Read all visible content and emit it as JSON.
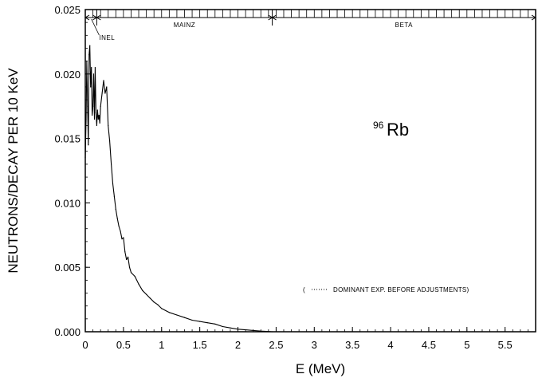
{
  "chart_data": {
    "type": "line",
    "xlabel": "E  (MeV)",
    "ylabel": "NEUTRONS/DECAY PER 10 KeV",
    "xlim": [
      0,
      5.9
    ],
    "ylim": [
      0,
      0.025
    ],
    "x_ticks": [
      "0",
      "0.5",
      "1",
      "1.5",
      "2",
      "2.5",
      "3",
      "3.5",
      "4",
      "4.5",
      "5",
      "5.5"
    ],
    "x_tick_values": [
      0,
      0.5,
      1,
      1.5,
      2,
      2.5,
      3,
      3.5,
      4,
      4.5,
      5,
      5.5
    ],
    "y_ticks": [
      "0.000",
      "0.005",
      "0.010",
      "0.015",
      "0.020",
      "0.025"
    ],
    "y_tick_values": [
      0,
      0.005,
      0.01,
      0.015,
      0.02,
      0.025
    ],
    "annotation": {
      "mass_number": "96",
      "element": "Rb"
    },
    "legend": {
      "prefix": "(",
      "text": "DOMINANT EXP. BEFORE ADJUSTMENTS)"
    },
    "regions": [
      {
        "label": "INEL",
        "x_start": 0,
        "x_end": 0.15
      },
      {
        "label": "MAINZ",
        "x_start": 0.15,
        "x_end": 2.45
      },
      {
        "label": "BETA",
        "x_start": 2.45,
        "x_end": 5.9
      }
    ],
    "series": [
      {
        "style": "solid",
        "points": [
          [
            0.0,
            0.0135
          ],
          [
            0.01,
            0.0165
          ],
          [
            0.02,
            0.021
          ],
          [
            0.03,
            0.0175
          ],
          [
            0.04,
            0.0145
          ],
          [
            0.05,
            0.0215
          ],
          [
            0.06,
            0.0222
          ],
          [
            0.07,
            0.019
          ],
          [
            0.08,
            0.0205
          ],
          [
            0.09,
            0.0168
          ],
          [
            0.1,
            0.0175
          ],
          [
            0.11,
            0.02
          ],
          [
            0.12,
            0.0165
          ],
          [
            0.13,
            0.0205
          ],
          [
            0.14,
            0.017
          ],
          [
            0.15,
            0.016
          ],
          [
            0.16,
            0.0172
          ],
          [
            0.17,
            0.0165
          ],
          [
            0.18,
            0.0168
          ],
          [
            0.19,
            0.0162
          ],
          [
            0.2,
            0.0175
          ],
          [
            0.22,
            0.0185
          ],
          [
            0.24,
            0.0195
          ],
          [
            0.26,
            0.0185
          ],
          [
            0.28,
            0.019
          ],
          [
            0.3,
            0.016
          ],
          [
            0.32,
            0.0148
          ],
          [
            0.34,
            0.013
          ],
          [
            0.36,
            0.0115
          ],
          [
            0.38,
            0.0105
          ],
          [
            0.4,
            0.0095
          ],
          [
            0.42,
            0.0088
          ],
          [
            0.44,
            0.0082
          ],
          [
            0.46,
            0.0078
          ],
          [
            0.48,
            0.0072
          ],
          [
            0.5,
            0.0073
          ],
          [
            0.52,
            0.0062
          ],
          [
            0.54,
            0.0056
          ],
          [
            0.56,
            0.0058
          ],
          [
            0.58,
            0.005
          ],
          [
            0.6,
            0.0046
          ],
          [
            0.65,
            0.0043
          ],
          [
            0.7,
            0.0037
          ],
          [
            0.75,
            0.0032
          ],
          [
            0.8,
            0.0029
          ],
          [
            0.85,
            0.0026
          ],
          [
            0.9,
            0.0023
          ],
          [
            0.95,
            0.0021
          ],
          [
            1.0,
            0.0018
          ],
          [
            1.1,
            0.0015
          ],
          [
            1.2,
            0.0013
          ],
          [
            1.3,
            0.0011
          ],
          [
            1.4,
            0.0009
          ],
          [
            1.5,
            0.0008
          ],
          [
            1.6,
            0.0007
          ],
          [
            1.7,
            0.0006
          ],
          [
            1.8,
            0.0004
          ],
          [
            1.9,
            0.0003
          ],
          [
            2.0,
            0.0002
          ],
          [
            2.1,
            0.00015
          ],
          [
            2.2,
            0.0001
          ],
          [
            2.3,
            5e-05
          ],
          [
            2.4,
            2e-05
          ],
          [
            2.45,
            0.0
          ]
        ]
      }
    ]
  }
}
